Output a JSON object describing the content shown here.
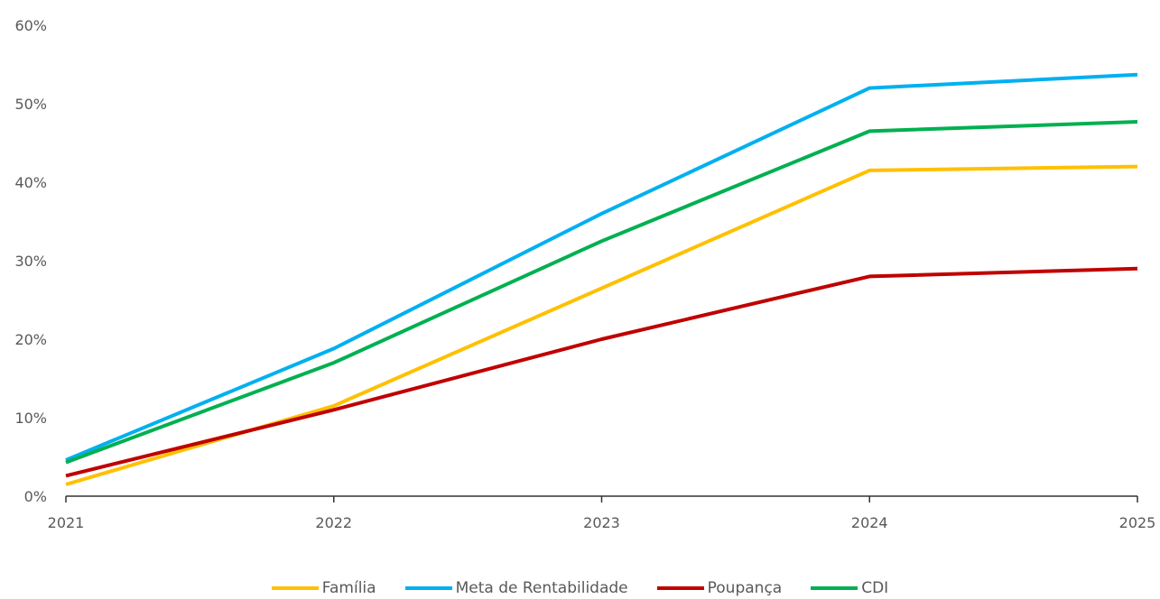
{
  "chart_data": {
    "type": "line",
    "x": [
      "2021",
      "2022",
      "2023",
      "2024",
      "2025"
    ],
    "series": [
      {
        "name": "Família",
        "color": "#FFC000",
        "values": [
          1.5,
          11.5,
          26.5,
          41.5,
          42.0
        ]
      },
      {
        "name": "Meta de Rentabilidade",
        "color": "#00B0F0",
        "values": [
          4.6,
          18.8,
          36.0,
          52.0,
          53.7
        ]
      },
      {
        "name": "Poupança",
        "color": "#C00000",
        "values": [
          2.6,
          11.0,
          20.0,
          28.0,
          29.0
        ]
      },
      {
        "name": "CDI",
        "color": "#00B050",
        "values": [
          4.3,
          17.0,
          32.5,
          46.5,
          47.7
        ]
      }
    ],
    "y_ticks": [
      "0%",
      "10%",
      "20%",
      "30%",
      "40%",
      "50%",
      "60%"
    ],
    "ylim": [
      0,
      60
    ],
    "grid": false,
    "legend_position": "bottom"
  }
}
